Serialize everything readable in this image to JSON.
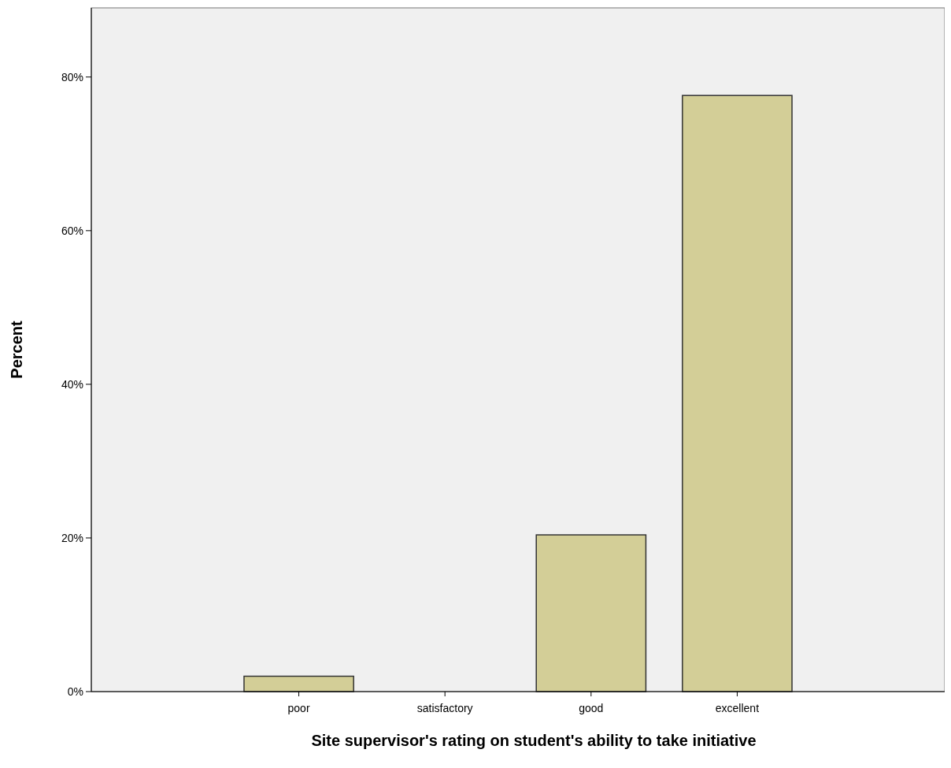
{
  "chart_data": {
    "type": "bar",
    "xlabel": "Site supervisor's rating on student's ability to take initiative",
    "ylabel": "Percent",
    "categories": [
      "poor",
      "satisfactory",
      "good",
      "excellent"
    ],
    "values": [
      2.0,
      0,
      20.4,
      77.6
    ],
    "color": "#d3ce97",
    "ylim": [
      0,
      89
    ],
    "yticks": [
      {
        "value": 0,
        "label": "0%"
      },
      {
        "value": 20,
        "label": "20%"
      },
      {
        "value": 40,
        "label": "40%"
      },
      {
        "value": 60,
        "label": "60%"
      },
      {
        "value": 80,
        "label": "80%"
      }
    ],
    "grid": false
  }
}
